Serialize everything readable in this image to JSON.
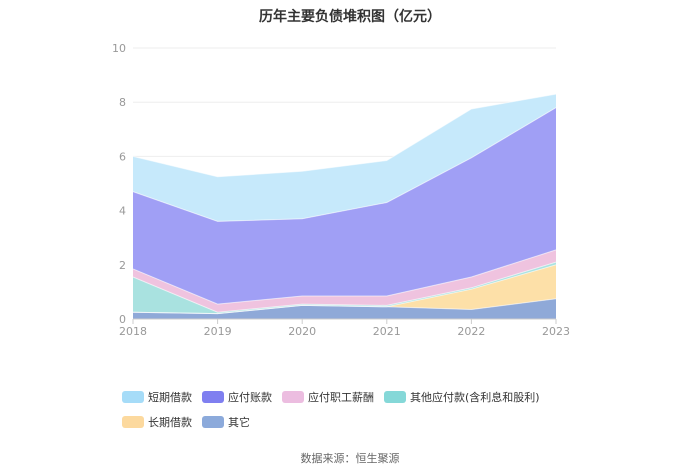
{
  "chart_data": {
    "type": "area",
    "title": "历年主要负债堆积图（亿元）",
    "x": [
      "2018",
      "2019",
      "2020",
      "2021",
      "2022",
      "2023"
    ],
    "ylim": [
      0,
      10
    ],
    "yticks": [
      0,
      2,
      4,
      6,
      8,
      10
    ],
    "grid": true,
    "legend_position": "bottom",
    "stacked": true,
    "series": [
      {
        "name": "其它",
        "color": "#8fa9d8",
        "values": [
          0.25,
          0.2,
          0.5,
          0.45,
          0.35,
          0.75
        ]
      },
      {
        "name": "长期借款",
        "color": "#fde0a8",
        "values": [
          0.0,
          0.0,
          0.0,
          0.0,
          0.75,
          1.25
        ]
      },
      {
        "name": "其他应付款(含利息和股利)",
        "color": "#a9e2e0",
        "values": [
          1.3,
          0.05,
          0.05,
          0.05,
          0.05,
          0.1
        ]
      },
      {
        "name": "应付职工薪酬",
        "color": "#efc3df",
        "values": [
          0.3,
          0.3,
          0.3,
          0.35,
          0.4,
          0.45
        ]
      },
      {
        "name": "应付账款",
        "color": "#a09ff5",
        "values": [
          2.85,
          3.05,
          2.85,
          3.45,
          4.4,
          5.25
        ]
      },
      {
        "name": "短期借款",
        "color": "#c6e9fb",
        "values": [
          1.3,
          1.65,
          1.75,
          1.55,
          1.8,
          0.5
        ]
      }
    ]
  },
  "legend": [
    {
      "label": "短期借款",
      "color": "#a6dcf8"
    },
    {
      "label": "应付账款",
      "color": "#7f7ff0"
    },
    {
      "label": "应付职工薪酬",
      "color": "#ecbde0"
    },
    {
      "label": "其他应付款(含利息和股利)",
      "color": "#85d8d8"
    },
    {
      "label": "长期借款",
      "color": "#fcd99e"
    },
    {
      "label": "其它",
      "color": "#8caadb"
    }
  ],
  "source": "数据来源：恒生聚源"
}
